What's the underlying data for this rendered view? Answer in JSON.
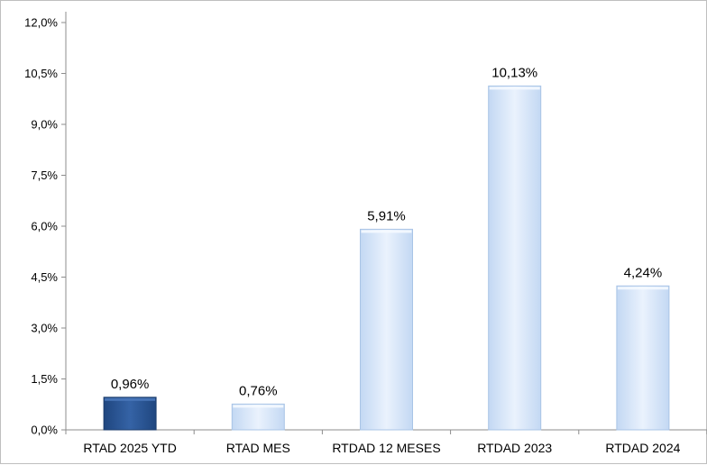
{
  "chart_data": {
    "type": "bar",
    "categories": [
      "RTAD 2025 YTD",
      "RTAD MES",
      "RTDAD 12 MESES",
      "RTDAD 2023",
      "RTDAD 2024"
    ],
    "values": [
      0.96,
      0.76,
      5.91,
      10.13,
      4.24
    ],
    "data_labels": [
      "0,96%",
      "0,76%",
      "5,91%",
      "10,13%",
      "4,24%"
    ],
    "ylim": [
      0,
      12
    ],
    "y_ticks": [
      0,
      1.5,
      3,
      4.5,
      6,
      7.5,
      9,
      10.5,
      12
    ],
    "y_tick_labels": [
      "0,0%",
      "1,5%",
      "3,0%",
      "4,5%",
      "6,0%",
      "7,5%",
      "9,0%",
      "10,5%",
      "12,0%"
    ],
    "title": "",
    "xlabel": "",
    "ylabel": "",
    "grid": false,
    "legend": "none",
    "colors": {
      "highlight_bar": "#2b5593",
      "highlight_bar_dark": "#1d3e6e",
      "bar": "#d6e6fa",
      "bar_edge": "#a9c4e6",
      "axis": "#8c8c8c"
    },
    "highlighted_categories": [
      "RTAD 2025 YTD"
    ]
  }
}
